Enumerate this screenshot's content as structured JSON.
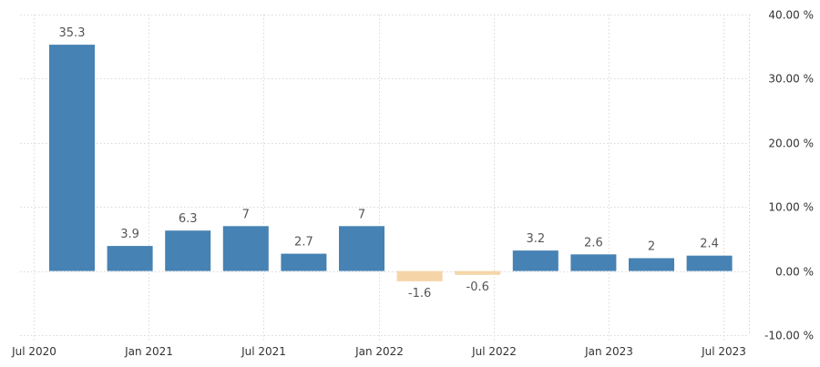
{
  "chart_data": {
    "type": "bar",
    "title": "",
    "xlabel": "",
    "ylabel": "",
    "categories": [
      "Q3 2020",
      "Q4 2020",
      "Q1 2021",
      "Q2 2021",
      "Q3 2021",
      "Q4 2021",
      "Q1 2022",
      "Q2 2022",
      "Q3 2022",
      "Q4 2022",
      "Q1 2023",
      "Q2 2023"
    ],
    "values": [
      35.3,
      3.9,
      6.3,
      7,
      2.7,
      7,
      -1.6,
      -0.6,
      3.2,
      2.6,
      2,
      2.4
    ],
    "data_labels": [
      "35.3",
      "3.9",
      "6.3",
      "7",
      "2.7",
      "7",
      "-1.6",
      "-0.6",
      "3.2",
      "2.6",
      "2",
      "2.4"
    ],
    "x_ticks": [
      "Jul 2020",
      "Jan 2021",
      "Jul 2021",
      "Jan 2022",
      "Jul 2022",
      "Jan 2023",
      "Jul 2023"
    ],
    "y_ticks": [
      "40.00 %",
      "30.00 %",
      "20.00 %",
      "10.00 %",
      "0.00 %",
      "-10.00 %"
    ],
    "y_tick_values": [
      40,
      30,
      20,
      10,
      0,
      -10
    ],
    "ylim": [
      -10,
      40
    ],
    "grid": true,
    "y_axis_position": "right",
    "colors": {
      "positive": "#4682b4",
      "negative": "#f5d5a8"
    }
  }
}
